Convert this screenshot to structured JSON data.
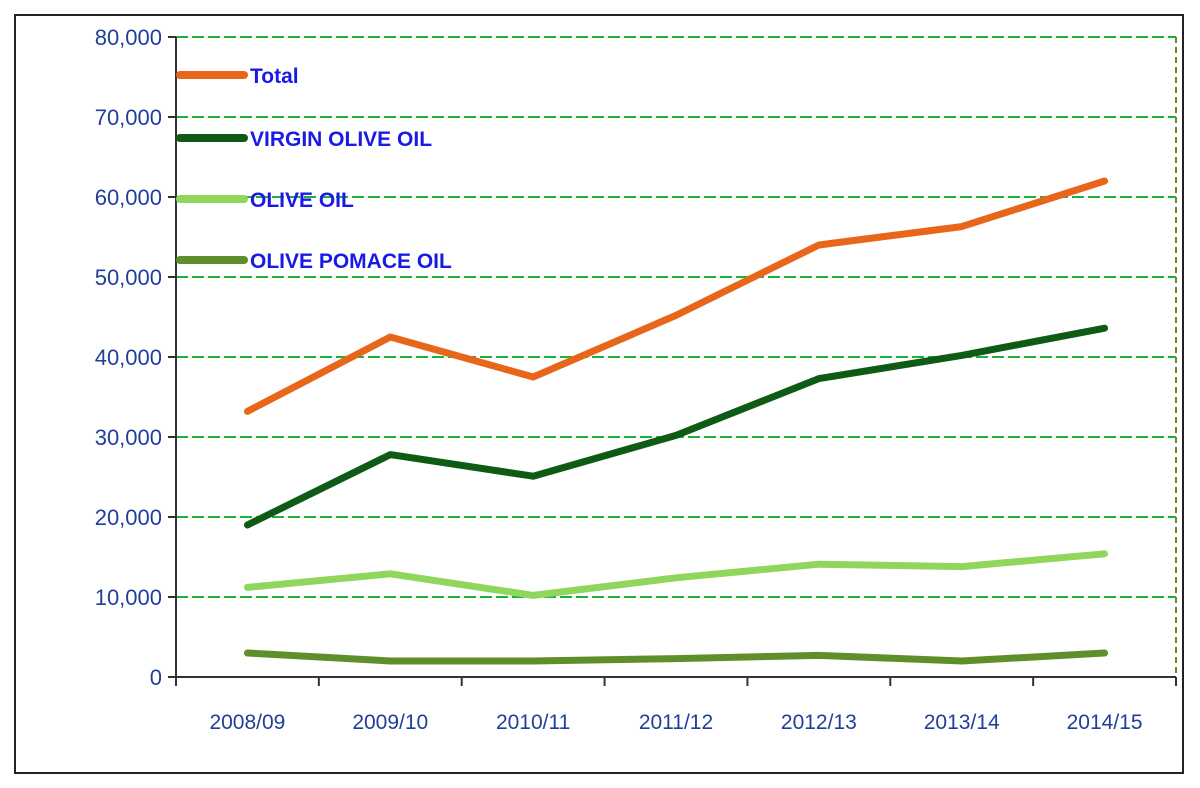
{
  "chart_data": {
    "type": "line",
    "title": "",
    "xlabel": "",
    "ylabel": "",
    "categories": [
      "2008/09",
      "2009/10",
      "2010/11",
      "2011/12",
      "2012/13",
      "2013/14",
      "2014/15"
    ],
    "ylim": [
      0,
      80000
    ],
    "yticks": [
      0,
      10000,
      20000,
      30000,
      40000,
      50000,
      60000,
      70000,
      80000
    ],
    "ytick_labels": [
      "0",
      "10,000",
      "20,000",
      "30,000",
      "40,000",
      "50,000",
      "60,000",
      "70,000",
      "80,000"
    ],
    "grid": true,
    "grid_style": "dashed",
    "legend_position": "top-left",
    "series": [
      {
        "name": "Total",
        "color": "#e8661a",
        "values": [
          33200,
          42500,
          37500,
          45200,
          54000,
          56300,
          62000
        ]
      },
      {
        "name": "VIRGIN OLIVE OIL",
        "color": "#0f5a14",
        "values": [
          19000,
          27800,
          25100,
          30200,
          37300,
          40200,
          43600
        ]
      },
      {
        "name": "OLIVE OIL",
        "color": "#8fd65a",
        "values": [
          11200,
          12900,
          10200,
          12400,
          14100,
          13800,
          15400
        ]
      },
      {
        "name": "OLIVE POMACE OIL",
        "color": "#5f8f2a",
        "values": [
          3000,
          2000,
          2000,
          2300,
          2700,
          2000,
          3000
        ]
      }
    ],
    "colors": {
      "grid": "#19b23a",
      "axis": "#333333",
      "tick_text": "#1f3f9a",
      "legend_text": "#1a1ae6"
    }
  }
}
